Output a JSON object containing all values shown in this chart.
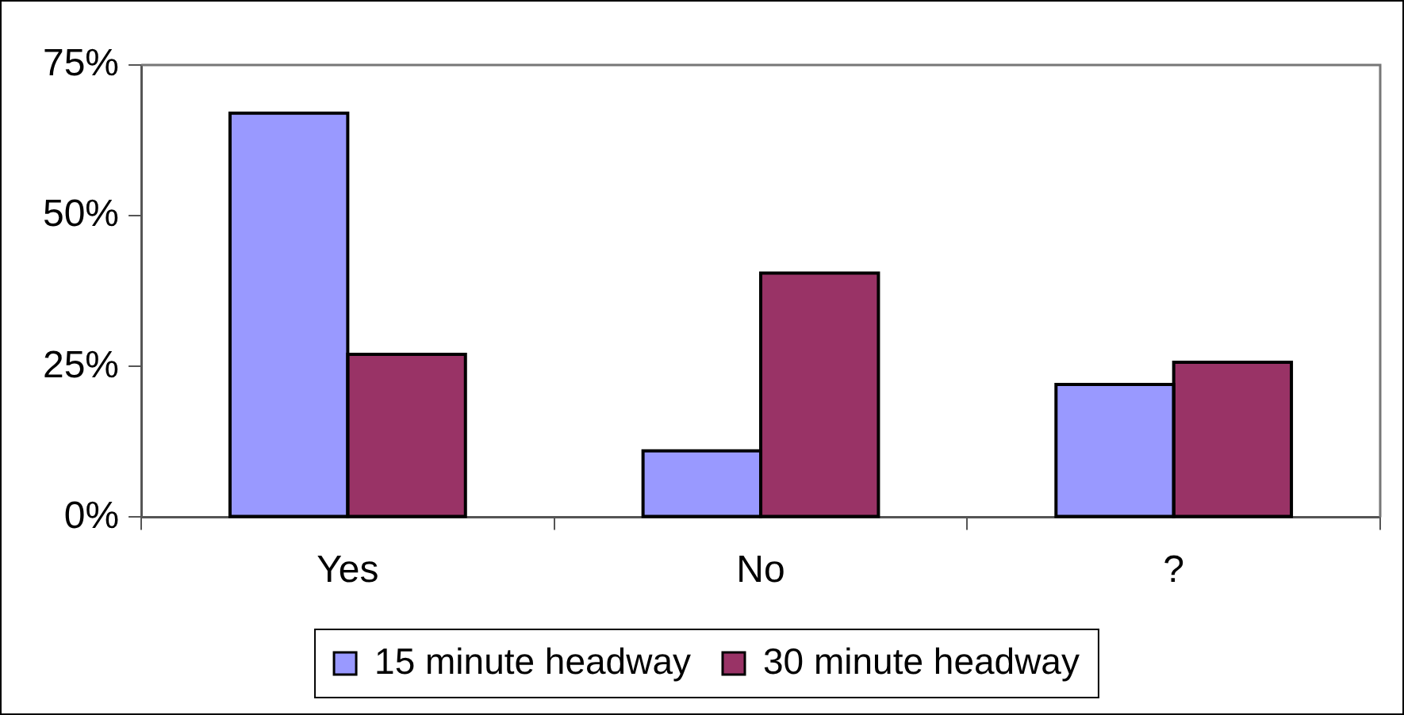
{
  "chart_data": {
    "type": "bar",
    "categories": [
      "Yes",
      "No",
      "?"
    ],
    "series": [
      {
        "name": "15 minute headway",
        "color": "#9999ff",
        "values": [
          67,
          11,
          22
        ]
      },
      {
        "name": "30 minute headway",
        "color": "#993366",
        "values": [
          27,
          40.5,
          25.7
        ]
      }
    ],
    "ylim": [
      0,
      75
    ],
    "yticks": [
      {
        "value": 0,
        "label": "0%"
      },
      {
        "value": 25,
        "label": "25%"
      },
      {
        "value": 50,
        "label": "50%"
      },
      {
        "value": 75,
        "label": "75%"
      }
    ],
    "grid": false,
    "legend": "bottom"
  }
}
